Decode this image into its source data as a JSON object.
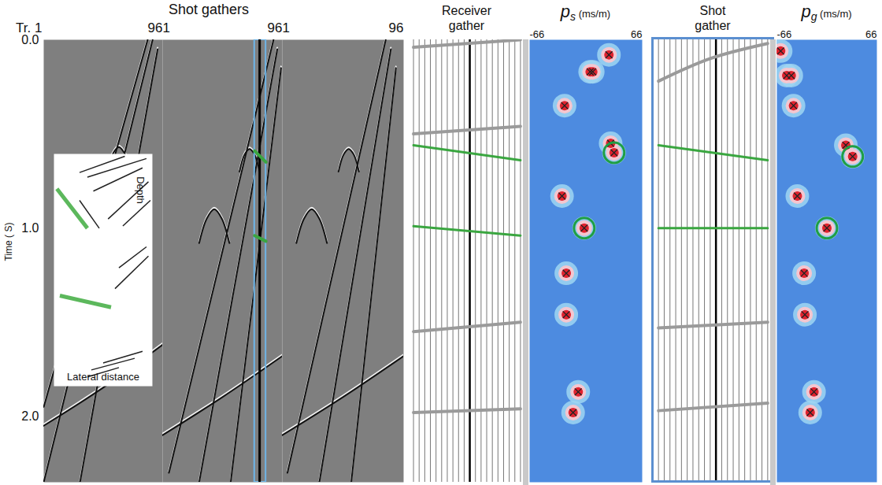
{
  "chart_data": [
    {
      "type": "shot_gathers",
      "title": "Shot gathers",
      "ylabel": "Time ( S)",
      "ylim": [
        0,
        2.35
      ],
      "yticks": [
        {
          "value": 0,
          "label": "0.0"
        },
        {
          "value": 1,
          "label": "1.0"
        },
        {
          "value": 2,
          "label": "2.0"
        }
      ],
      "gathers": [
        {
          "xlim": [
            1,
            96
          ],
          "xticks": [
            {
              "value": 1,
              "label": "Tr. 1"
            },
            96
          ],
          "events": [
            [
              [
                84,
                0.0
              ],
              [
                1,
                1.95
              ]
            ],
            [
              [
                88,
                0.0
              ],
              [
                1,
                2.35
              ]
            ],
            [
              [
                92,
                0.05
              ],
              [
                30,
                2.35
              ]
            ],
            [
              [
                50,
                0.72
              ],
              [
                55,
                0.62
              ],
              [
                61,
                0.57
              ],
              [
                67,
                0.62
              ],
              [
                72,
                0.72
              ]
            ],
            [
              [
                1,
                2.05
              ],
              [
                48,
                1.85
              ],
              [
                96,
                1.62
              ]
            ]
          ]
        },
        {
          "xlim": [
            1,
            96
          ],
          "xticks": [
            1,
            96
          ],
          "events": [
            [
              [
                89,
                0.0
              ],
              [
                6,
                2.3
              ]
            ],
            [
              [
                92,
                0.05
              ],
              [
                30,
                2.35
              ]
            ],
            [
              [
                95,
                0.15
              ],
              [
                55,
                2.35
              ]
            ],
            [
              [
                30,
                1.08
              ],
              [
                36,
                0.95
              ],
              [
                42,
                0.9
              ],
              [
                48,
                0.95
              ],
              [
                54,
                1.08
              ]
            ],
            [
              [
                62,
                0.7
              ],
              [
                66,
                0.61
              ],
              [
                70,
                0.58
              ],
              [
                74,
                0.61
              ],
              [
                78,
                0.7
              ]
            ],
            [
              [
                1,
                2.1
              ],
              [
                48,
                1.9
              ],
              [
                96,
                1.68
              ]
            ]
          ],
          "selected_traces": [
            74,
            83
          ],
          "selected_trace": 78,
          "picked_events": [
            [
              [
                74,
                0.59
              ],
              [
                83,
                0.65
              ]
            ],
            [
              [
                74,
                1.04
              ],
              [
                83,
                1.07
              ]
            ]
          ]
        },
        {
          "xlim": [
            1,
            96
          ],
          "xticks": [
            1,
            96
          ],
          "events": [
            [
              [
                82,
                0.0
              ],
              [
                5,
                2.3
              ]
            ],
            [
              [
                86,
                0.05
              ],
              [
                30,
                2.35
              ]
            ],
            [
              [
                90,
                0.15
              ],
              [
                55,
                2.35
              ]
            ],
            [
              [
                12,
                1.08
              ],
              [
                18,
                0.95
              ],
              [
                24,
                0.9
              ],
              [
                30,
                0.95
              ],
              [
                36,
                1.08
              ]
            ],
            [
              [
                45,
                0.7
              ],
              [
                49,
                0.61
              ],
              [
                53,
                0.58
              ],
              [
                57,
                0.61
              ],
              [
                61,
                0.7
              ]
            ],
            [
              [
                1,
                2.1
              ],
              [
                48,
                1.9
              ],
              [
                96,
                1.68
              ]
            ]
          ]
        }
      ],
      "inset": {
        "xlabel": "Lateral distance",
        "ylabel": "Depth",
        "xlim": [
          0,
          100
        ],
        "ylim": [
          0,
          100
        ],
        "segments": [
          [
            [
              26,
              8
            ],
            [
              72,
              1
            ]
          ],
          [
            [
              34,
              10
            ],
            [
              94,
              2
            ]
          ],
          [
            [
              40,
              16
            ],
            [
              90,
              6
            ]
          ],
          [
            [
              26,
              20
            ],
            [
              46,
              32
            ]
          ],
          [
            [
              70,
              31
            ],
            [
              98,
              20
            ]
          ],
          [
            [
              55,
              28
            ],
            [
              96,
              12
            ]
          ],
          [
            [
              66,
              49
            ],
            [
              94,
              40
            ]
          ],
          [
            [
              62,
              58
            ],
            [
              96,
              44
            ]
          ],
          [
            [
              50,
              90
            ],
            [
              90,
              85
            ]
          ],
          [
            [
              38,
              93
            ],
            [
              82,
              88
            ]
          ],
          [
            [
              34,
              96
            ],
            [
              66,
              92
            ]
          ]
        ],
        "highlighted_segments": [
          [
            [
              3,
              15
            ],
            [
              34,
              32
            ]
          ],
          [
            [
              6,
              61
            ],
            [
              58,
              66
            ]
          ]
        ]
      }
    },
    {
      "type": "wiggle",
      "title": "Receiver gather",
      "traces": 20,
      "selected_trace": 11,
      "ylim": [
        0,
        2.35
      ],
      "tick_labels": false,
      "events": [
        [
          [
            1,
            0.04
          ],
          [
            20,
            0.0
          ]
        ],
        [
          [
            1,
            0.5
          ],
          [
            20,
            0.46
          ]
        ],
        [
          [
            1,
            1.55
          ],
          [
            20,
            1.5
          ]
        ],
        [
          [
            1,
            1.98
          ],
          [
            20,
            1.96
          ]
        ]
      ],
      "picked_events": [
        [
          [
            1,
            0.56
          ],
          [
            20,
            0.64
          ]
        ],
        [
          [
            1,
            0.99
          ],
          [
            20,
            1.04
          ]
        ]
      ]
    },
    {
      "type": "semblance",
      "title": "p",
      "subscript": "s",
      "unit": "(ms/m)",
      "xlim": [
        -66,
        66
      ],
      "xticks": [
        -66,
        66
      ],
      "ylim": [
        0,
        2.35
      ],
      "picks": [
        {
          "p": 27,
          "t": 0.08
        },
        {
          "p": 5,
          "t": 0.17
        },
        {
          "p": 8,
          "t": 0.17
        },
        {
          "p": -25,
          "t": 0.35
        },
        {
          "p": 29,
          "t": 0.55
        },
        {
          "p": 33,
          "t": 0.6,
          "circled": true
        },
        {
          "p": -28,
          "t": 0.83
        },
        {
          "p": -2,
          "t": 1.0,
          "circled": true
        },
        {
          "p": -23,
          "t": 1.24
        },
        {
          "p": -23,
          "t": 1.46
        },
        {
          "p": -9,
          "t": 1.87
        },
        {
          "p": -15,
          "t": 1.98
        }
      ]
    },
    {
      "type": "wiggle",
      "title": "Shot gather",
      "traces": 20,
      "selected_trace": 11,
      "ylim": [
        0,
        2.35
      ],
      "tick_labels": false,
      "color": "#5b8fd0",
      "events": [
        [
          [
            1,
            0.22
          ],
          [
            10,
            0.1
          ],
          [
            20,
            0.02
          ]
        ],
        [
          [
            1,
            1.53
          ],
          [
            20,
            1.5
          ]
        ],
        [
          [
            1,
            1.97
          ],
          [
            20,
            1.93
          ]
        ]
      ],
      "picked_events": [
        [
          [
            1,
            0.56
          ],
          [
            20,
            0.64
          ]
        ],
        [
          [
            1,
            1.0
          ],
          [
            20,
            1.0
          ]
        ]
      ]
    },
    {
      "type": "semblance",
      "title": "p",
      "subscript": "g",
      "unit": "(ms/m)",
      "xlim": [
        -66,
        66
      ],
      "xticks": [
        -66,
        66
      ],
      "ylim": [
        0,
        2.35
      ],
      "picks": [
        {
          "p": -61,
          "t": 0.06
        },
        {
          "p": -53,
          "t": 0.19
        },
        {
          "p": -47,
          "t": 0.19
        },
        {
          "p": -44,
          "t": 0.35
        },
        {
          "p": 25,
          "t": 0.56
        },
        {
          "p": 34,
          "t": 0.62,
          "circled": true
        },
        {
          "p": -39,
          "t": 0.83
        },
        {
          "p": 0,
          "t": 1.0,
          "circled": true
        },
        {
          "p": -30,
          "t": 1.24
        },
        {
          "p": -29,
          "t": 1.46
        },
        {
          "p": -17,
          "t": 1.87
        },
        {
          "p": -22,
          "t": 1.98
        }
      ]
    }
  ]
}
